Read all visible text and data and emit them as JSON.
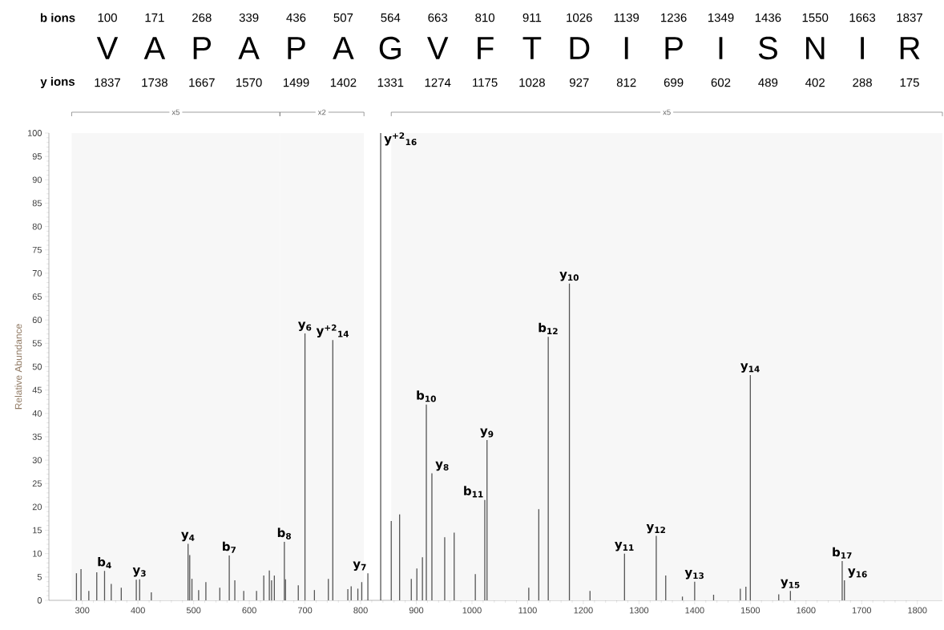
{
  "chart_data": {
    "type": "bar",
    "ylabel": "Relative Abundance",
    "color": "#555555",
    "x": [
      289.5,
      297.7,
      311.7,
      326,
      340,
      352,
      370,
      397,
      403,
      424,
      490,
      493,
      497,
      509,
      522,
      547,
      564,
      574,
      590,
      613,
      626,
      636,
      640,
      645,
      663,
      665,
      688,
      700,
      717,
      742,
      750,
      777,
      783,
      795,
      802,
      813,
      836,
      855,
      870,
      891,
      901,
      911,
      918,
      928,
      951,
      968,
      1006,
      1023,
      1027,
      1102,
      1120,
      1137,
      1175,
      1212,
      1274,
      1331,
      1348,
      1378,
      1400,
      1434,
      1482,
      1492,
      1500,
      1551,
      1572,
      1665,
      1669
    ],
    "values": [
      5.8,
      6.7,
      2.0,
      6.0,
      6.3,
      3.5,
      2.7,
      4.4,
      4.5,
      1.7,
      12.1,
      9.7,
      4.6,
      2.2,
      3.9,
      2.7,
      9.6,
      4.3,
      2.0,
      2.0,
      5.3,
      6.4,
      4.3,
      5.3,
      12.5,
      4.5,
      3.2,
      57.1,
      2.2,
      4.6,
      55.7,
      2.4,
      3.0,
      2.5,
      3.9,
      5.8,
      100,
      17.0,
      18.4,
      4.6,
      6.8,
      9.2,
      41.9,
      27.2,
      13.5,
      14.5,
      5.6,
      21.5,
      34.3,
      2.7,
      19.5,
      56.4,
      67.8,
      2.0,
      10.0,
      13.8,
      5.3,
      0.8,
      4.0,
      1.2,
      2.5,
      2.9,
      48.2,
      1.3,
      2.0,
      8.4,
      4.3
    ],
    "xlim": [
      240,
      1845
    ],
    "ylim": [
      0,
      100
    ],
    "xticks": [
      300,
      400,
      500,
      600,
      700,
      800,
      900,
      1000,
      1100,
      1200,
      1300,
      1400,
      1500,
      1600,
      1700,
      1800
    ],
    "yticks": [
      0,
      5,
      10,
      15,
      20,
      25,
      30,
      35,
      40,
      45,
      50,
      55,
      60,
      65,
      70,
      75,
      80,
      85,
      90,
      95,
      100
    ],
    "bands": [
      {
        "axis": "x",
        "from": 281,
        "to": 655,
        "label": "x5"
      },
      {
        "axis": "x",
        "from": 655,
        "to": 806,
        "label": "x2"
      },
      {
        "axis": "x",
        "from": 855,
        "to": 1845,
        "label": "x5"
      }
    ],
    "annotations": [
      "b ions",
      "100",
      "171",
      "268",
      "339",
      "436",
      "507",
      "564",
      "663",
      "810",
      "911",
      "1026",
      "1139",
      "1236",
      "1349",
      "1436",
      "1550",
      "1663",
      "1837",
      "V",
      "A",
      "P",
      "A",
      "P",
      "A",
      "G",
      "V",
      "F",
      "T",
      "D",
      "I",
      "P",
      "I",
      "S",
      "N",
      "I",
      "R",
      "y ions",
      "1837",
      "1738",
      "1667",
      "1570",
      "1499",
      "1402",
      "1331",
      "1274",
      "1175",
      "1028",
      "927",
      "812",
      "699",
      "602",
      "489",
      "402",
      "288",
      "175",
      {
        "text": "b$_{4}$",
        "x": 340,
        "y": 6.3
      },
      {
        "text": "y$_{3}$",
        "x": 403,
        "y": 4.5
      },
      {
        "text": "y$_{4}$",
        "x": 490,
        "y": 12.1
      },
      {
        "text": "b$_{7}$",
        "x": 564,
        "y": 9.6
      },
      {
        "text": "b$_{8}$",
        "x": 663,
        "y": 12.5
      },
      {
        "text": "y$_{6}$",
        "x": 700,
        "y": 57.1
      },
      {
        "text": "y$^{+2}$$_{14}$",
        "x": 750,
        "y": 55.7
      },
      {
        "text": "y$_{7}$",
        "x": 813,
        "y": 5.8
      },
      {
        "text": "y$^{+2}$$_{16}$",
        "x": 836,
        "y": 100
      },
      {
        "text": "b$_{10}$",
        "x": 918,
        "y": 41.9
      },
      {
        "text": "y$_{8}$",
        "x": 928,
        "y": 27.2
      },
      {
        "text": "b$_{11}$",
        "x": 1023,
        "y": 21.5
      },
      {
        "text": "y$_{9}$",
        "x": 1027,
        "y": 34.3
      },
      {
        "text": "b$_{12}$",
        "x": 1137,
        "y": 56.4
      },
      {
        "text": "y$_{10}$",
        "x": 1175,
        "y": 67.8
      },
      {
        "text": "y$_{11}$",
        "x": 1274,
        "y": 10.0
      },
      {
        "text": "y$_{12}$",
        "x": 1331,
        "y": 13.8
      },
      {
        "text": "y$_{13}$",
        "x": 1400,
        "y": 4.0
      },
      {
        "text": "y$_{14}$",
        "x": 1500,
        "y": 48.2
      },
      {
        "text": "y$_{15}$",
        "x": 1572,
        "y": 2.0
      },
      {
        "text": "b$_{17}$",
        "x": 1665,
        "y": 8.4
      },
      {
        "text": "y$_{16}$",
        "x": 1669,
        "y": 4.3
      }
    ]
  }
}
